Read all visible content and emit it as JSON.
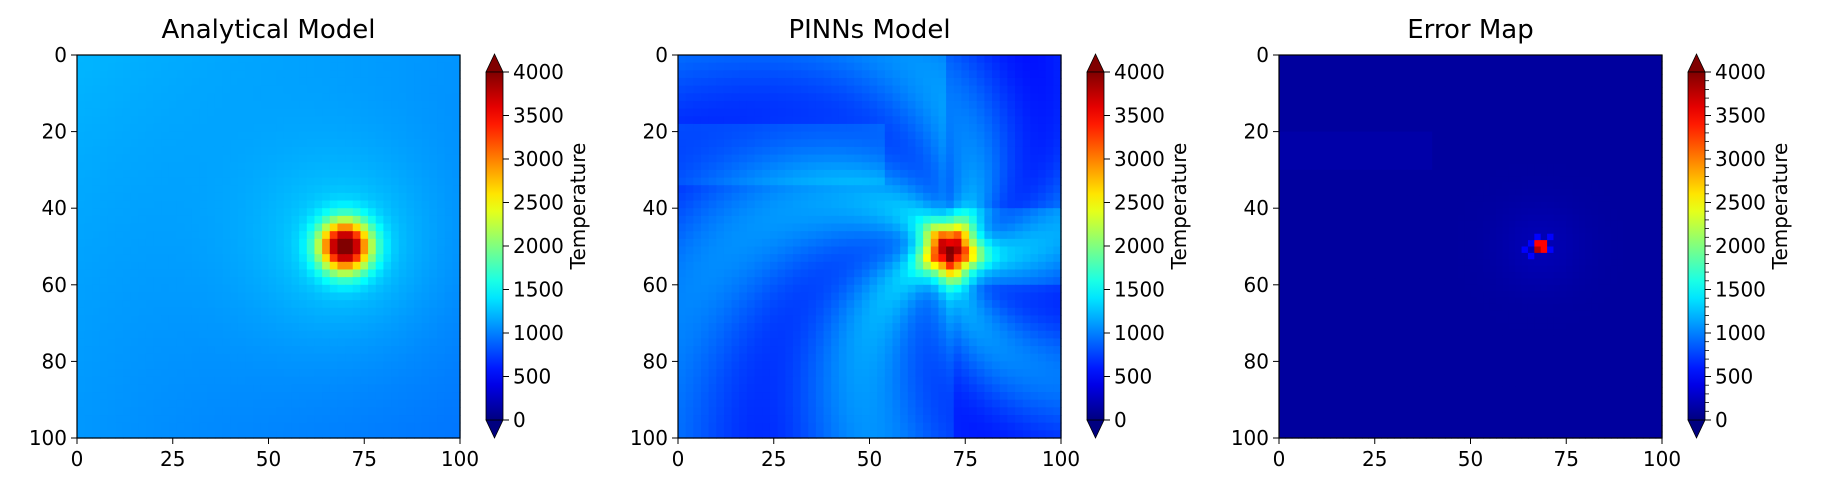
{
  "chart_data": [
    {
      "type": "heatmap",
      "title": "Analytical Model",
      "xlabel": "",
      "ylabel": "",
      "x_ticks": [
        0,
        25,
        50,
        75,
        100
      ],
      "y_ticks": [
        0,
        20,
        40,
        60,
        80,
        100
      ],
      "xlim": [
        0,
        100
      ],
      "ylim": [
        100,
        0
      ],
      "colormap": "jet",
      "colorbar": {
        "label": "Temperature",
        "ticks": [
          0,
          500,
          1000,
          1500,
          2000,
          2500,
          3000,
          3500,
          4000
        ],
        "range": [
          0,
          4000
        ],
        "extend": "both"
      },
      "hotspot": {
        "x": 70,
        "y": 50,
        "peak": 4000,
        "background": 1100
      }
    },
    {
      "type": "heatmap",
      "title": "PINNs Model",
      "xlabel": "",
      "ylabel": "",
      "x_ticks": [
        0,
        25,
        50,
        75,
        100
      ],
      "y_ticks": [
        0,
        20,
        40,
        60,
        80,
        100
      ],
      "xlim": [
        0,
        100
      ],
      "ylim": [
        100,
        0
      ],
      "colormap": "jet",
      "colorbar": {
        "label": "Temperature",
        "ticks": [
          0,
          500,
          1000,
          1500,
          2000,
          2500,
          3000,
          3500,
          4000
        ],
        "range": [
          0,
          4000
        ],
        "extend": "both"
      },
      "hotspot": {
        "x": 70,
        "y": 50,
        "peak": 4000,
        "background": 1000
      }
    },
    {
      "type": "heatmap",
      "title": "Error Map",
      "xlabel": "",
      "ylabel": "",
      "x_ticks": [
        0,
        25,
        50,
        75,
        100
      ],
      "y_ticks": [
        0,
        20,
        40,
        60,
        80,
        100
      ],
      "xlim": [
        0,
        100
      ],
      "ylim": [
        100,
        0
      ],
      "colormap": "jet",
      "colorbar": {
        "label": "Temperature",
        "ticks": [
          0,
          500,
          1000,
          1500,
          2000,
          2500,
          3000,
          3500,
          4000
        ],
        "range": [
          0,
          4000
        ],
        "extend": "both",
        "minor_ticks": true
      },
      "hotspot": {
        "x": 68,
        "y": 50,
        "peak": 3500,
        "background": 120
      }
    }
  ]
}
